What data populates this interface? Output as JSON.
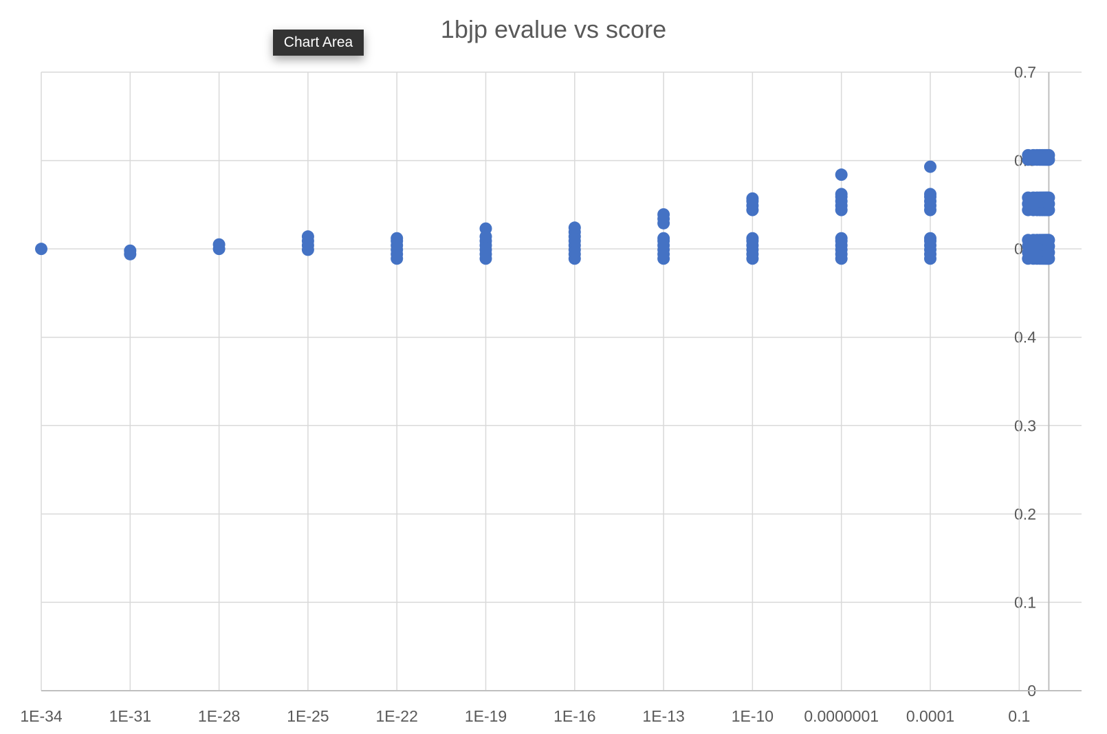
{
  "tooltip": {
    "label": "Chart Area"
  },
  "chart_data": {
    "type": "scatter",
    "title": "1bjp evalue vs score",
    "xlabel": "",
    "ylabel": "",
    "x_scale": "log10",
    "x_tick_labels": [
      "1E-34",
      "1E-31",
      "1E-28",
      "1E-25",
      "1E-22",
      "1E-19",
      "1E-16",
      "1E-13",
      "1E-10",
      "0.0000001",
      "0.0001",
      "0.1"
    ],
    "y_tick_labels": [
      "0",
      "0.1",
      "0.2",
      "0.3",
      "0.4",
      "0.5",
      "0.6",
      "0.7"
    ],
    "ylim": [
      0,
      0.7
    ],
    "grid": true,
    "legend": "none",
    "point_color": "#4472c4",
    "series": [
      {
        "points": [
          {
            "x": 1e-34,
            "y": 0.5
          },
          {
            "x": 1e-31,
            "y": 0.494
          },
          {
            "x": 1e-31,
            "y": 0.498
          },
          {
            "x": 1e-28,
            "y": 0.5
          },
          {
            "x": 1e-28,
            "y": 0.505
          },
          {
            "x": 1e-25,
            "y": 0.499
          },
          {
            "x": 1e-25,
            "y": 0.504
          },
          {
            "x": 1e-25,
            "y": 0.509
          },
          {
            "x": 1e-25,
            "y": 0.514
          },
          {
            "x": 1e-22,
            "y": 0.489
          },
          {
            "x": 1e-22,
            "y": 0.494
          },
          {
            "x": 1e-22,
            "y": 0.499
          },
          {
            "x": 1e-22,
            "y": 0.504
          },
          {
            "x": 1e-22,
            "y": 0.509
          },
          {
            "x": 1e-22,
            "y": 0.512
          },
          {
            "x": 1e-19,
            "y": 0.489
          },
          {
            "x": 1e-19,
            "y": 0.494
          },
          {
            "x": 1e-19,
            "y": 0.499
          },
          {
            "x": 1e-19,
            "y": 0.504
          },
          {
            "x": 1e-19,
            "y": 0.509
          },
          {
            "x": 1e-19,
            "y": 0.514
          },
          {
            "x": 1e-19,
            "y": 0.523
          },
          {
            "x": 1e-16,
            "y": 0.489
          },
          {
            "x": 1e-16,
            "y": 0.494
          },
          {
            "x": 1e-16,
            "y": 0.499
          },
          {
            "x": 1e-16,
            "y": 0.504
          },
          {
            "x": 1e-16,
            "y": 0.509
          },
          {
            "x": 1e-16,
            "y": 0.514
          },
          {
            "x": 1e-16,
            "y": 0.519
          },
          {
            "x": 1e-16,
            "y": 0.524
          },
          {
            "x": 1e-13,
            "y": 0.489
          },
          {
            "x": 1e-13,
            "y": 0.494
          },
          {
            "x": 1e-13,
            "y": 0.499
          },
          {
            "x": 1e-13,
            "y": 0.504
          },
          {
            "x": 1e-13,
            "y": 0.509
          },
          {
            "x": 1e-13,
            "y": 0.512
          },
          {
            "x": 1e-13,
            "y": 0.529
          },
          {
            "x": 1e-13,
            "y": 0.534
          },
          {
            "x": 1e-13,
            "y": 0.539
          },
          {
            "x": 1e-10,
            "y": 0.489
          },
          {
            "x": 1e-10,
            "y": 0.494
          },
          {
            "x": 1e-10,
            "y": 0.499
          },
          {
            "x": 1e-10,
            "y": 0.504
          },
          {
            "x": 1e-10,
            "y": 0.509
          },
          {
            "x": 1e-10,
            "y": 0.512
          },
          {
            "x": 1e-10,
            "y": 0.544
          },
          {
            "x": 1e-10,
            "y": 0.549
          },
          {
            "x": 1e-10,
            "y": 0.554
          },
          {
            "x": 1e-10,
            "y": 0.557
          },
          {
            "x": 1e-07,
            "y": 0.489
          },
          {
            "x": 1e-07,
            "y": 0.494
          },
          {
            "x": 1e-07,
            "y": 0.499
          },
          {
            "x": 1e-07,
            "y": 0.504
          },
          {
            "x": 1e-07,
            "y": 0.509
          },
          {
            "x": 1e-07,
            "y": 0.512
          },
          {
            "x": 1e-07,
            "y": 0.544
          },
          {
            "x": 1e-07,
            "y": 0.549
          },
          {
            "x": 1e-07,
            "y": 0.554
          },
          {
            "x": 1e-07,
            "y": 0.559
          },
          {
            "x": 1e-07,
            "y": 0.562
          },
          {
            "x": 1e-07,
            "y": 0.584
          },
          {
            "x": 0.0001,
            "y": 0.489
          },
          {
            "x": 0.0001,
            "y": 0.494
          },
          {
            "x": 0.0001,
            "y": 0.499
          },
          {
            "x": 0.0001,
            "y": 0.504
          },
          {
            "x": 0.0001,
            "y": 0.509
          },
          {
            "x": 0.0001,
            "y": 0.512
          },
          {
            "x": 0.0001,
            "y": 0.544
          },
          {
            "x": 0.0001,
            "y": 0.549
          },
          {
            "x": 0.0001,
            "y": 0.554
          },
          {
            "x": 0.0001,
            "y": 0.559
          },
          {
            "x": 0.0001,
            "y": 0.562
          },
          {
            "x": 0.0001,
            "y": 0.593
          },
          {
            "x": 0.2,
            "y": 0.489
          },
          {
            "x": 0.2,
            "y": 0.496
          },
          {
            "x": 0.2,
            "y": 0.503
          },
          {
            "x": 0.2,
            "y": 0.51
          },
          {
            "x": 0.2,
            "y": 0.544
          },
          {
            "x": 0.2,
            "y": 0.551
          },
          {
            "x": 0.2,
            "y": 0.558
          },
          {
            "x": 0.2,
            "y": 0.601
          },
          {
            "x": 0.2,
            "y": 0.606
          },
          {
            "x": 0.3,
            "y": 0.489
          },
          {
            "x": 0.3,
            "y": 0.496
          },
          {
            "x": 0.3,
            "y": 0.503
          },
          {
            "x": 0.3,
            "y": 0.51
          },
          {
            "x": 0.3,
            "y": 0.544
          },
          {
            "x": 0.3,
            "y": 0.551
          },
          {
            "x": 0.3,
            "y": 0.558
          },
          {
            "x": 0.3,
            "y": 0.601
          },
          {
            "x": 0.3,
            "y": 0.606
          },
          {
            "x": 0.4,
            "y": 0.489
          },
          {
            "x": 0.4,
            "y": 0.496
          },
          {
            "x": 0.4,
            "y": 0.503
          },
          {
            "x": 0.4,
            "y": 0.51
          },
          {
            "x": 0.4,
            "y": 0.544
          },
          {
            "x": 0.4,
            "y": 0.551
          },
          {
            "x": 0.4,
            "y": 0.558
          },
          {
            "x": 0.4,
            "y": 0.601
          },
          {
            "x": 0.4,
            "y": 0.606
          },
          {
            "x": 0.5,
            "y": 0.489
          },
          {
            "x": 0.5,
            "y": 0.496
          },
          {
            "x": 0.5,
            "y": 0.503
          },
          {
            "x": 0.5,
            "y": 0.51
          },
          {
            "x": 0.5,
            "y": 0.544
          },
          {
            "x": 0.5,
            "y": 0.551
          },
          {
            "x": 0.5,
            "y": 0.558
          },
          {
            "x": 0.5,
            "y": 0.601
          },
          {
            "x": 0.5,
            "y": 0.606
          },
          {
            "x": 0.6,
            "y": 0.489
          },
          {
            "x": 0.6,
            "y": 0.496
          },
          {
            "x": 0.6,
            "y": 0.503
          },
          {
            "x": 0.6,
            "y": 0.51
          },
          {
            "x": 0.6,
            "y": 0.544
          },
          {
            "x": 0.6,
            "y": 0.551
          },
          {
            "x": 0.6,
            "y": 0.558
          },
          {
            "x": 0.6,
            "y": 0.601
          },
          {
            "x": 0.6,
            "y": 0.606
          },
          {
            "x": 0.7,
            "y": 0.489
          },
          {
            "x": 0.7,
            "y": 0.496
          },
          {
            "x": 0.7,
            "y": 0.503
          },
          {
            "x": 0.7,
            "y": 0.51
          },
          {
            "x": 0.7,
            "y": 0.544
          },
          {
            "x": 0.7,
            "y": 0.551
          },
          {
            "x": 0.7,
            "y": 0.558
          },
          {
            "x": 0.7,
            "y": 0.601
          },
          {
            "x": 0.7,
            "y": 0.606
          },
          {
            "x": 0.8,
            "y": 0.489
          },
          {
            "x": 0.8,
            "y": 0.496
          },
          {
            "x": 0.8,
            "y": 0.503
          },
          {
            "x": 0.8,
            "y": 0.51
          },
          {
            "x": 0.8,
            "y": 0.544
          },
          {
            "x": 0.8,
            "y": 0.551
          },
          {
            "x": 0.8,
            "y": 0.558
          },
          {
            "x": 0.8,
            "y": 0.601
          },
          {
            "x": 0.8,
            "y": 0.606
          },
          {
            "x": 0.9,
            "y": 0.489
          },
          {
            "x": 0.9,
            "y": 0.496
          },
          {
            "x": 0.9,
            "y": 0.503
          },
          {
            "x": 0.9,
            "y": 0.51
          },
          {
            "x": 0.9,
            "y": 0.544
          },
          {
            "x": 0.9,
            "y": 0.551
          },
          {
            "x": 0.9,
            "y": 0.558
          },
          {
            "x": 0.9,
            "y": 0.601
          },
          {
            "x": 0.9,
            "y": 0.606
          },
          {
            "x": 1.0,
            "y": 0.489
          },
          {
            "x": 1.0,
            "y": 0.496
          },
          {
            "x": 1.0,
            "y": 0.503
          },
          {
            "x": 1.0,
            "y": 0.51
          },
          {
            "x": 1.0,
            "y": 0.544
          },
          {
            "x": 1.0,
            "y": 0.551
          },
          {
            "x": 1.0,
            "y": 0.558
          },
          {
            "x": 1.0,
            "y": 0.601
          },
          {
            "x": 1.0,
            "y": 0.606
          }
        ]
      }
    ]
  }
}
